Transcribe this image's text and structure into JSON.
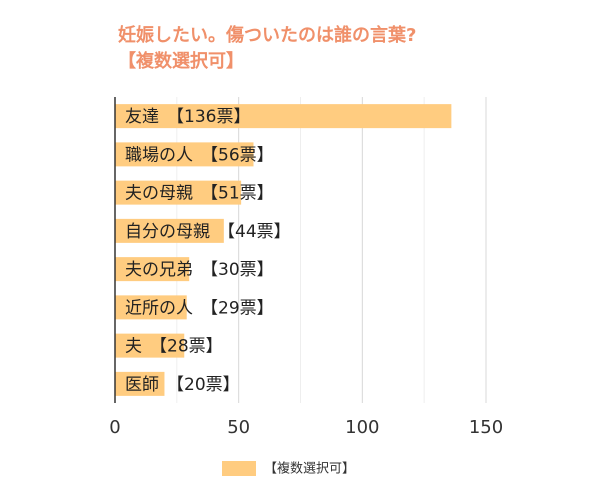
{
  "chart_data": {
    "type": "barh",
    "title": "妊娠したい。傷ついたのは誰の言葉?",
    "subtitle": "【複数選択可】",
    "categories": [
      "友達",
      "職場の人",
      "夫の母親",
      "自分の母親",
      "夫の兄弟",
      "近所の人",
      "夫",
      "医師"
    ],
    "series": [
      {
        "name": "【複数選択可】",
        "color": "#ffcc80",
        "values": [
          136,
          56,
          51,
          44,
          30,
          29,
          28,
          20
        ],
        "value_labels": [
          "【136票】",
          "【56票】",
          "【51票】",
          "【44票】",
          "【30票】",
          "【29票】",
          "【28票】",
          "【20票】"
        ]
      }
    ],
    "xlim": [
      0,
      150
    ],
    "xticks": [
      0,
      50,
      100,
      150
    ],
    "minor_xticks": [
      25,
      75,
      125
    ],
    "grid": true,
    "legend": "bottom"
  }
}
